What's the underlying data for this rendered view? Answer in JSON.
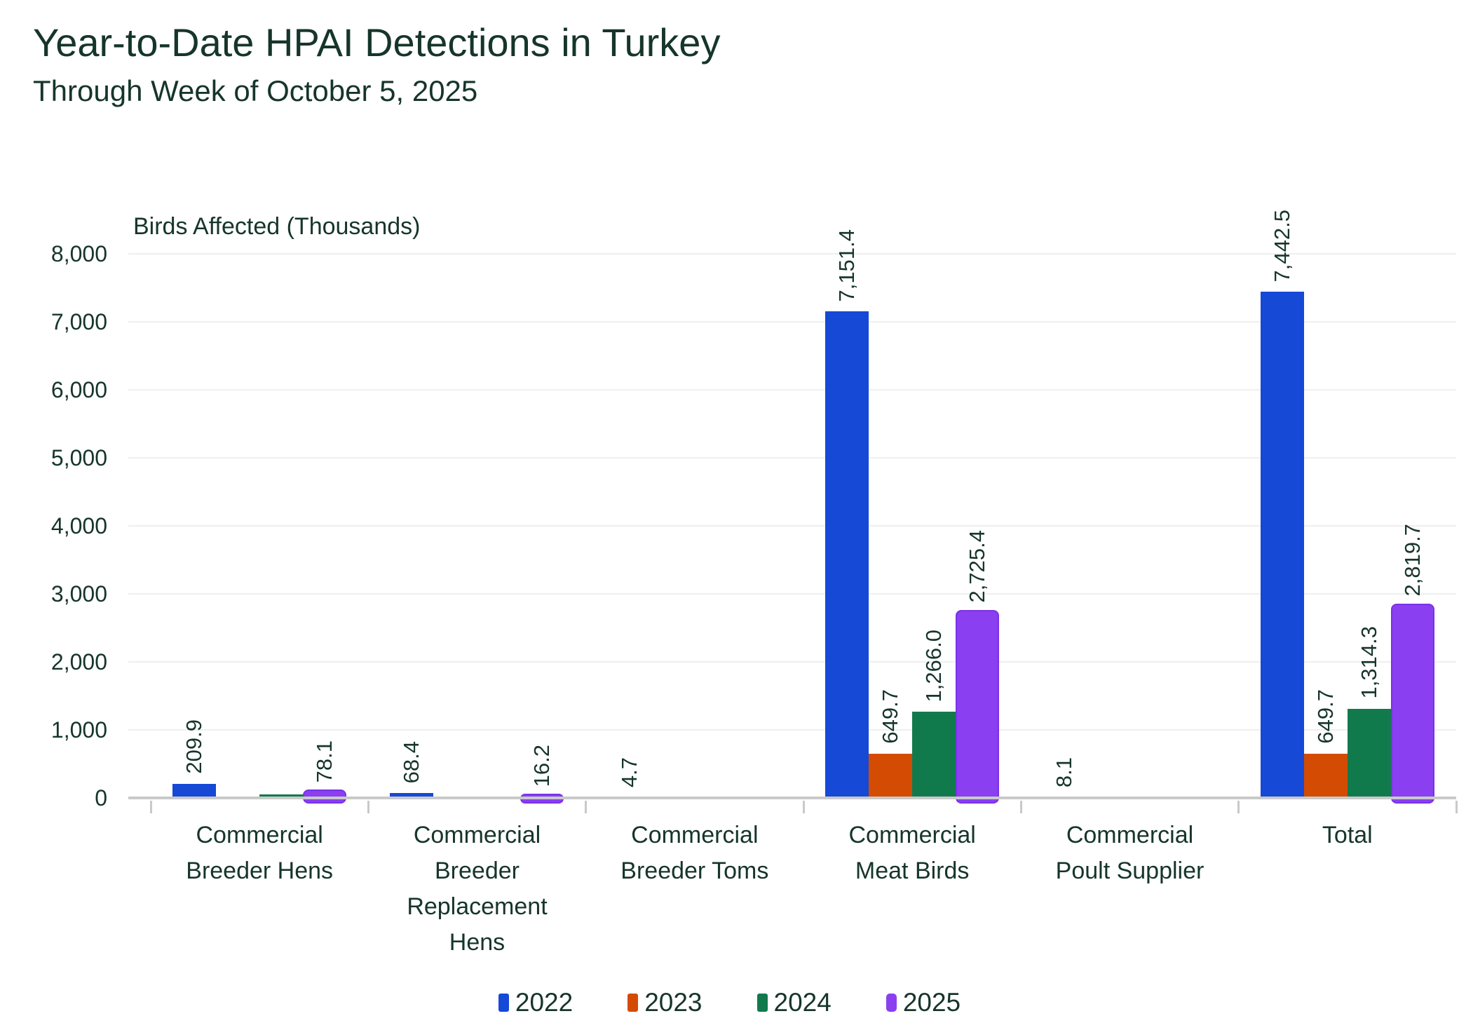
{
  "chart_data": {
    "type": "bar",
    "title": "Year-to-Date HPAI Detections in Turkey",
    "subtitle": "Through Week of October 5, 2025",
    "ylabel": "Birds Affected (Thousands)",
    "ylim": [
      0,
      8000
    ],
    "y_tick_step": 1000,
    "y_ticks": [
      {
        "value": 0,
        "label": "0"
      },
      {
        "value": 1000,
        "label": "1,000"
      },
      {
        "value": 2000,
        "label": "2,000"
      },
      {
        "value": 3000,
        "label": "3,000"
      },
      {
        "value": 4000,
        "label": "4,000"
      },
      {
        "value": 5000,
        "label": "5,000"
      },
      {
        "value": 6000,
        "label": "6,000"
      },
      {
        "value": 7000,
        "label": "7,000"
      },
      {
        "value": 8000,
        "label": "8,000"
      }
    ],
    "grid": "horizontal",
    "legend_position": "bottom",
    "categories": [
      "Commercial\nBreeder Hens",
      "Commercial\nBreeder\nReplacement\nHens",
      "Commercial\nBreeder Toms",
      "Commercial\nMeat Birds",
      "Commercial\nPoult Supplier",
      "Total"
    ],
    "series": [
      {
        "name": "2022",
        "color": "#1549D6",
        "values": [
          209.9,
          68.4,
          4.7,
          7151.4,
          8.1,
          7442.5
        ],
        "labels": [
          "209.9",
          "68.4",
          "4.7",
          "7,151.4",
          "8.1",
          "7,442.5"
        ]
      },
      {
        "name": "2023",
        "color": "#D44B04",
        "values": [
          null,
          null,
          null,
          649.7,
          null,
          649.7
        ],
        "labels": [
          "",
          "",
          "",
          "649.7",
          "",
          "649.7"
        ]
      },
      {
        "name": "2024",
        "color": "#117A4D",
        "values": [
          48.3,
          null,
          null,
          1266.0,
          null,
          1314.3
        ],
        "labels": [
          "",
          "",
          "",
          "1,266.0",
          "",
          "1,314.3"
        ]
      },
      {
        "name": "2025",
        "color": "#8A3FF0",
        "values": [
          78.1,
          16.2,
          null,
          2725.4,
          null,
          2819.7
        ],
        "labels": [
          "78.1",
          "16.2",
          "",
          "2,725.4",
          "",
          "2,819.7"
        ]
      }
    ],
    "colors": {
      "text": "#16352B",
      "gridline": "#EFEFEF",
      "axis_line": "#C9C9C9",
      "series_2025_border": "#7B31E8"
    }
  }
}
